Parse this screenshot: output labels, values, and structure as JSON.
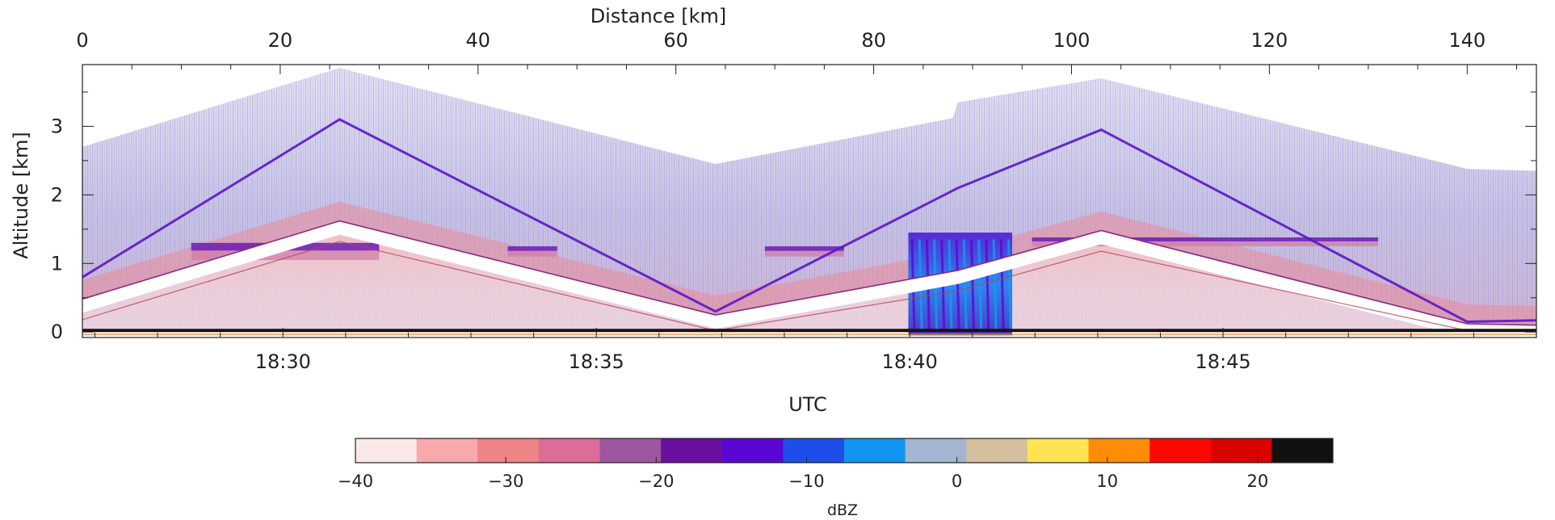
{
  "chart_data": [
    {
      "type": "heatmap",
      "title": "",
      "top_axis": {
        "label": "Distance [km]",
        "range": [
          0,
          147
        ],
        "ticks": [
          0,
          20,
          40,
          60,
          80,
          100,
          120,
          140
        ]
      },
      "x_axis": {
        "label": "UTC",
        "range_minutes": [
          1106.8,
          1130.0
        ],
        "ticks": [
          {
            "value": 1110,
            "label": "18:30"
          },
          {
            "value": 1115,
            "label": "18:35"
          },
          {
            "value": 1120,
            "label": "18:40"
          },
          {
            "value": 1125,
            "label": "18:45"
          }
        ]
      },
      "y_axis": {
        "label": "Altitude [km]",
        "range": [
          -0.08,
          3.9
        ],
        "ticks": [
          0,
          1,
          2,
          3
        ]
      },
      "echo_top_km": [
        {
          "x": 0,
          "y": 2.7
        },
        {
          "x": 26,
          "y": 3.85
        },
        {
          "x": 64,
          "y": 2.45
        },
        {
          "x": 88,
          "y": 3.12
        },
        {
          "x": 88.5,
          "y": 3.35
        },
        {
          "x": 103,
          "y": 3.7
        },
        {
          "x": 140,
          "y": 2.38
        },
        {
          "x": 147,
          "y": 2.35
        }
      ],
      "aircraft_altitude_km": [
        {
          "x": 0,
          "y": 0.8
        },
        {
          "x": 26,
          "y": 3.1
        },
        {
          "x": 64,
          "y": 0.3
        },
        {
          "x": 88.5,
          "y": 2.1
        },
        {
          "x": 103,
          "y": 2.95
        },
        {
          "x": 140,
          "y": 0.15
        },
        {
          "x": 147,
          "y": 0.17
        }
      ],
      "blind_zone_km": [
        {
          "x": 0,
          "y": 0.48
        },
        {
          "x": 26,
          "y": 1.62
        },
        {
          "x": 64,
          "y": 0.25
        },
        {
          "x": 88.5,
          "y": 0.9
        },
        {
          "x": 103,
          "y": 1.48
        },
        {
          "x": 140,
          "y": 0.12
        },
        {
          "x": 147,
          "y": 0.1
        }
      ],
      "cloud_layers_km": [
        {
          "x0": 11,
          "x1": 30,
          "ytop": 1.3,
          "ybot": 1.05
        },
        {
          "x0": 43,
          "x1": 48,
          "ytop": 1.25,
          "ybot": 1.1
        },
        {
          "x0": 69,
          "x1": 77,
          "ytop": 1.25,
          "ybot": 1.1
        },
        {
          "x0": 96,
          "x1": 131,
          "ytop": 1.38,
          "ybot": 1.25
        }
      ],
      "convective_core": {
        "x0": 83.5,
        "x1": 94,
        "ytop": 1.45,
        "ybot": -0.05
      },
      "colorbar": {
        "label": "dBZ",
        "range": [
          -40,
          25
        ],
        "ticks": [
          -40,
          -30,
          -20,
          -10,
          0,
          10,
          20
        ],
        "tick_labels": [
          "−40",
          "−30",
          "−20",
          "−10",
          "0",
          "10",
          "20"
        ],
        "colors": [
          "#fbe9ea",
          "#f7a9ae",
          "#ef8487",
          "#dc6d98",
          "#9d57a1",
          "#6b0fa0",
          "#5a07d3",
          "#1e4ee8",
          "#1096f2",
          "#a2b6d2",
          "#d4c09e",
          "#fee352",
          "#fe8c07",
          "#fe0702",
          "#d90000",
          "#111111"
        ]
      }
    }
  ]
}
